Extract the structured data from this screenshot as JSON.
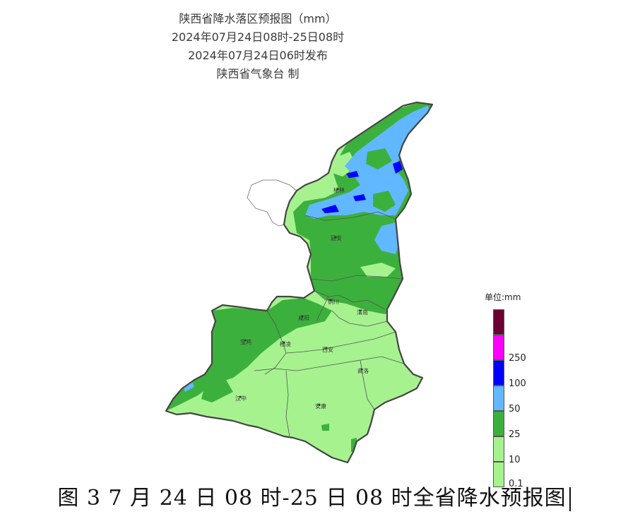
{
  "header": {
    "title": "陕西省降水落区预报图（mm）",
    "period": "2024年07月24日08时-25日08时",
    "issued": "2024年07月24日06时发布",
    "issuer": "陕西省气象台 制"
  },
  "legend": {
    "unit_label": "单位:mm",
    "items": [
      {
        "label": "",
        "color": "#6b0033"
      },
      {
        "label": "250",
        "color": "#ff00ff"
      },
      {
        "label": "100",
        "color": "#0000ff"
      },
      {
        "label": "50",
        "color": "#61b8ff"
      },
      {
        "label": "25",
        "color": "#3cb03c"
      },
      {
        "label": "10",
        "color": "#a6f28f"
      },
      {
        "label": "0.1",
        "color": ""
      }
    ]
  },
  "cities": {
    "yulin": "榆林",
    "yanan": "延安",
    "tongchuan": "铜川",
    "weinan": "渭南",
    "xianyang": "咸阳",
    "baoji": "宝鸡",
    "yangling": "杨凌",
    "xian": "西安",
    "shangluo": "商洛",
    "hanzhong": "汉中",
    "ankang": "安康"
  },
  "colors": {
    "light_green": "#a6f28f",
    "green": "#3cb03c",
    "light_blue": "#61b8ff",
    "blue": "#0000ff",
    "magenta": "#ff00ff",
    "dark_red": "#6b0033",
    "border": "#444444"
  },
  "caption": "图 3   7 月 24 日 08 时-25 日 08 时全省降水预报图"
}
